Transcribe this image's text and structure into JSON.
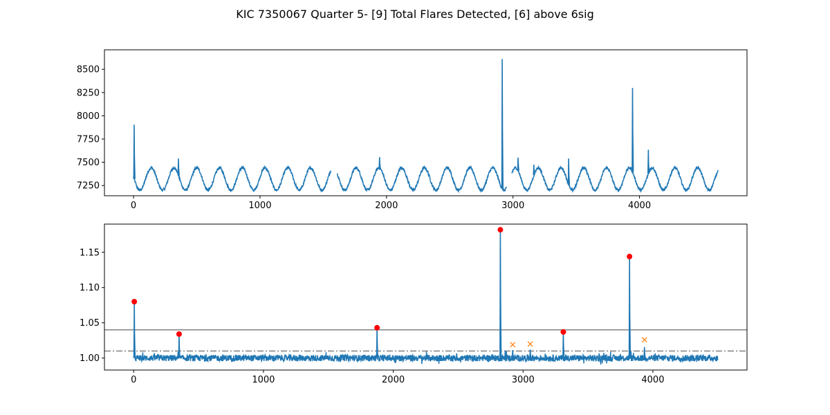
{
  "figure": {
    "title": "KIC 7350067 Quarter 5- [9] Total Flares Detected, [6] above 6sig"
  },
  "chart_data": [
    {
      "type": "line",
      "panel": "top",
      "series_color": "#1f77b4",
      "xlim": [
        -230,
        4850
      ],
      "ylim": [
        7140,
        8710
      ],
      "xticks": [
        0,
        1000,
        2000,
        3000,
        4000
      ],
      "yticks": [
        7250,
        7500,
        7750,
        8000,
        8250,
        8500
      ],
      "baseline": {
        "segments": [
          [
            0,
            1560
          ],
          [
            1610,
            2950
          ],
          [
            2990,
            4620
          ]
        ],
        "period": 180,
        "mean": 7320,
        "amplitude": 120,
        "phase_peak": 140
      },
      "spikes": [
        {
          "x": 5,
          "y": 7905
        },
        {
          "x": 355,
          "y": 7540
        },
        {
          "x": 1945,
          "y": 7555
        },
        {
          "x": 2915,
          "y": 8610
        },
        {
          "x": 3040,
          "y": 7550
        },
        {
          "x": 3165,
          "y": 7475
        },
        {
          "x": 3440,
          "y": 7540
        },
        {
          "x": 3945,
          "y": 8300
        },
        {
          "x": 4070,
          "y": 7635
        }
      ]
    },
    {
      "type": "line",
      "panel": "bottom",
      "series_color": "#1f77b4",
      "xlim": [
        -225,
        4725
      ],
      "ylim": [
        0.983,
        1.19
      ],
      "xticks": [
        0,
        1000,
        2000,
        3000,
        4000
      ],
      "yticks": [
        1.0,
        1.05,
        1.1,
        1.15
      ],
      "ytick_labels": [
        "1.00",
        "1.05",
        "1.10",
        "1.15"
      ],
      "x_range": [
        0,
        4500
      ],
      "baseline_level": 1.0,
      "threshold_solid": 1.04,
      "threshold_dashdot": 1.01,
      "flares_above_6sig": [
        {
          "x": 5,
          "y": 1.08
        },
        {
          "x": 350,
          "y": 1.034
        },
        {
          "x": 1875,
          "y": 1.043
        },
        {
          "x": 2825,
          "y": 1.182
        },
        {
          "x": 3310,
          "y": 1.037
        },
        {
          "x": 3820,
          "y": 1.144
        }
      ],
      "other_flares": [
        {
          "x": 2920,
          "y": 1.019
        },
        {
          "x": 3055,
          "y": 1.02
        },
        {
          "x": 3935,
          "y": 1.026
        }
      ],
      "marker_color_6sig": "#ff0000",
      "marker_color_other": "#ff7f0e",
      "threshold_color": "#808080"
    }
  ]
}
